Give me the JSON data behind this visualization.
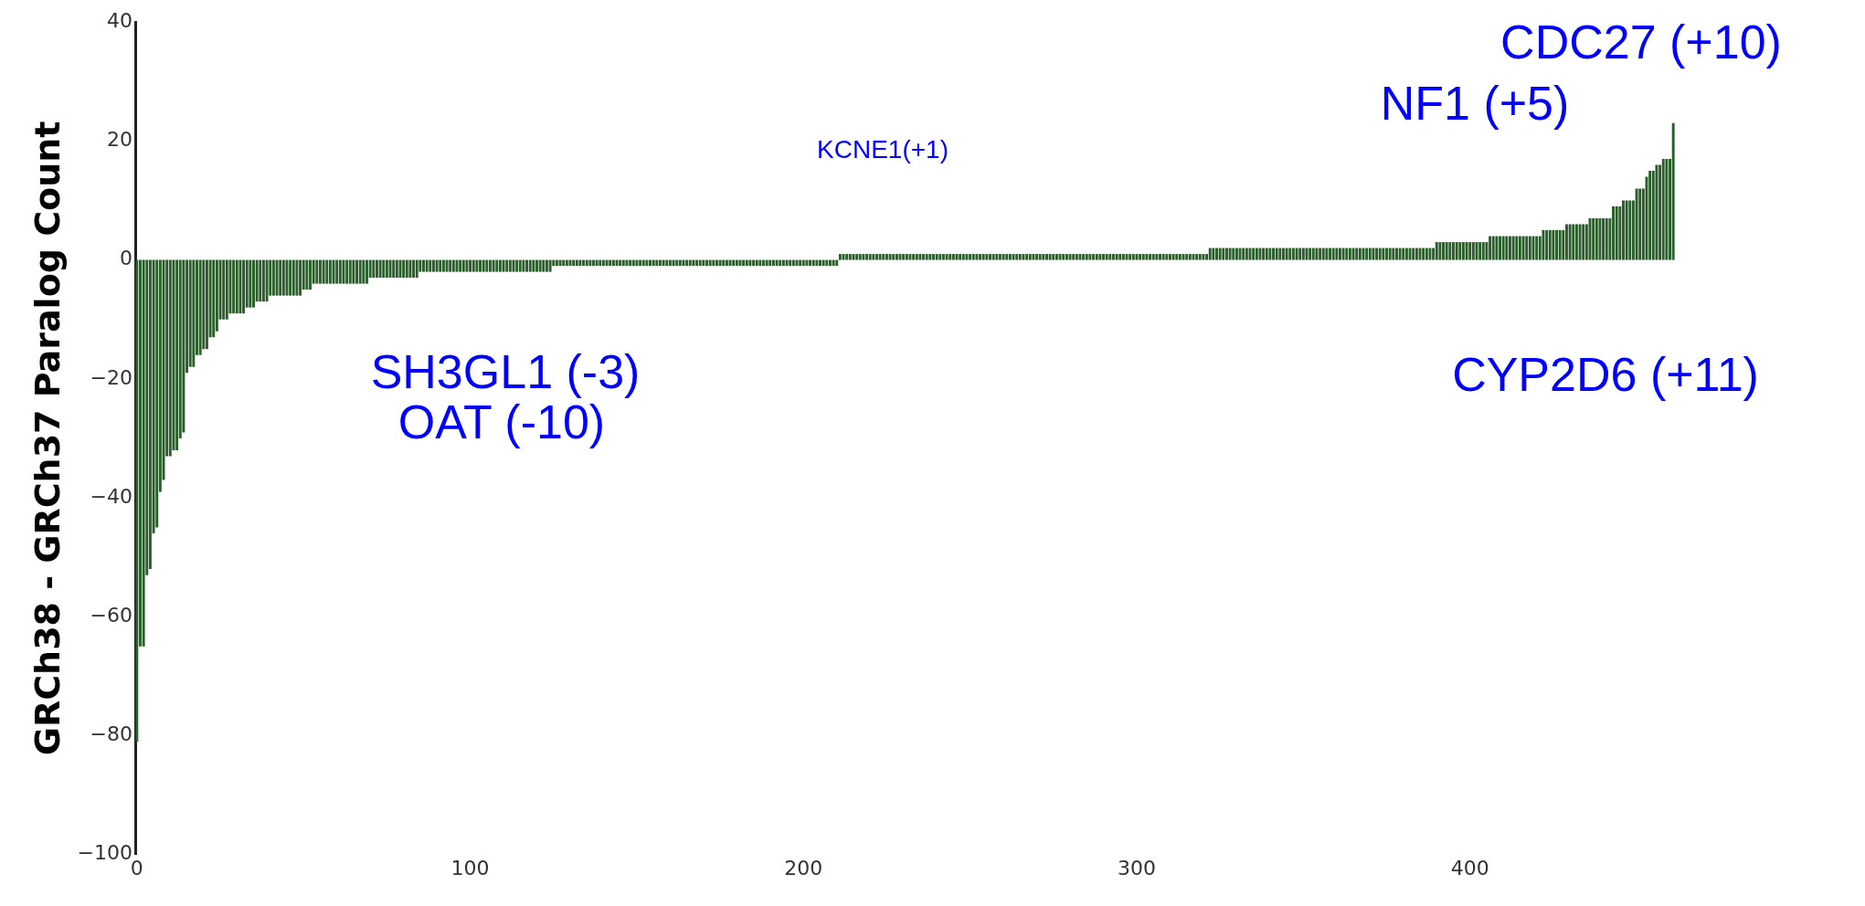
{
  "chart_data": {
    "type": "bar",
    "ylabel": "GRCh38 - GRCh37 Paralog Count",
    "color": "#2a5e2a",
    "x": [
      0,
      1,
      2,
      3,
      4,
      5,
      6,
      7,
      8,
      9,
      10,
      11,
      12,
      13,
      14,
      15,
      16,
      17,
      18,
      19,
      20,
      21,
      22,
      23,
      24,
      25,
      26,
      27,
      28,
      29,
      30,
      31,
      32,
      33,
      34,
      35,
      36,
      37,
      38,
      39,
      40,
      41,
      42,
      43,
      44,
      45,
      46,
      47,
      48,
      49,
      50,
      51,
      52,
      53,
      54,
      55,
      56,
      57,
      58,
      59,
      60,
      61,
      62,
      63,
      64,
      65,
      66,
      67,
      68,
      69,
      70,
      71,
      72,
      73,
      74,
      75,
      76,
      77,
      78,
      79,
      80,
      81,
      82,
      83,
      84,
      85,
      86,
      87,
      88,
      89,
      90,
      91,
      92,
      93,
      94,
      95,
      96,
      97,
      98,
      99,
      100,
      101,
      102,
      103,
      104,
      105,
      106,
      107,
      108,
      109,
      110,
      111,
      112,
      113,
      114,
      115,
      116,
      117,
      118,
      119,
      120,
      121,
      122,
      123,
      124,
      125,
      126,
      127,
      128,
      129,
      130,
      131,
      132,
      133,
      134,
      135,
      136,
      137,
      138,
      139,
      140,
      141,
      142,
      143,
      144,
      145,
      146,
      147,
      148,
      149,
      150,
      151,
      152,
      153,
      154,
      155,
      156,
      157,
      158,
      159,
      160,
      161,
      162,
      163,
      164,
      165,
      166,
      167,
      168,
      169,
      170,
      171,
      172,
      173,
      174,
      175,
      176,
      177,
      178,
      179,
      180,
      181,
      182,
      183,
      184,
      185,
      186,
      187,
      188,
      189,
      190,
      191,
      192,
      193,
      194,
      195,
      196,
      197,
      198,
      199,
      200,
      201,
      202,
      203,
      204,
      205,
      206,
      207,
      208,
      209,
      210,
      211,
      212,
      213,
      214,
      215,
      216,
      217,
      218,
      219,
      220,
      221,
      222,
      223,
      224,
      225,
      226,
      227,
      228,
      229,
      230,
      231,
      232,
      233,
      234,
      235,
      236,
      237,
      238,
      239,
      240,
      241,
      242,
      243,
      244,
      245,
      246,
      247,
      248,
      249,
      250,
      251,
      252,
      253,
      254,
      255,
      256,
      257,
      258,
      259,
      260,
      261,
      262,
      263,
      264,
      265,
      266,
      267,
      268,
      269,
      270,
      271,
      272,
      273,
      274,
      275,
      276,
      277,
      278,
      279,
      280,
      281,
      282,
      283,
      284,
      285,
      286,
      287,
      288,
      289,
      290,
      291,
      292,
      293,
      294,
      295,
      296,
      297,
      298,
      299,
      300,
      301,
      302,
      303,
      304,
      305,
      306,
      307,
      308,
      309,
      310,
      311,
      312,
      313,
      314,
      315,
      316,
      317,
      318,
      319,
      320,
      321,
      322,
      323,
      324,
      325,
      326,
      327,
      328,
      329,
      330,
      331,
      332,
      333,
      334,
      335,
      336,
      337,
      338,
      339,
      340,
      341,
      342,
      343,
      344,
      345,
      346,
      347,
      348,
      349,
      350,
      351,
      352,
      353,
      354,
      355,
      356,
      357,
      358,
      359,
      360,
      361,
      362,
      363,
      364,
      365,
      366,
      367,
      368,
      369,
      370,
      371,
      372,
      373,
      374,
      375,
      376,
      377,
      378,
      379,
      380,
      381,
      382,
      383,
      384,
      385,
      386,
      387,
      388,
      389,
      390,
      391,
      392,
      393,
      394,
      395,
      396,
      397,
      398,
      399,
      400,
      401,
      402,
      403,
      404,
      405,
      406,
      407,
      408,
      409,
      410,
      411,
      412,
      413,
      414,
      415,
      416,
      417,
      418,
      419,
      420,
      421,
      422,
      423,
      424,
      425,
      426,
      427,
      428,
      429,
      430,
      431,
      432,
      433,
      434,
      435,
      436,
      437,
      438,
      439,
      440,
      441,
      442,
      443,
      444,
      445,
      446,
      447,
      448,
      449,
      450,
      451,
      452,
      453,
      454,
      455,
      456,
      457,
      458,
      459,
      460,
      461
    ],
    "values": [
      -81,
      -65,
      -65,
      -53,
      -52,
      -46,
      -45,
      -39,
      -37,
      -33,
      -33,
      -32,
      -32,
      -30,
      -29,
      -19,
      -18,
      -18,
      -16,
      -16,
      -15,
      -15,
      -13,
      -13,
      -12,
      -10,
      -10,
      -10,
      -9,
      -9,
      -9,
      -9,
      -9,
      -8,
      -8,
      -8,
      -7,
      -7,
      -7,
      -7,
      -6,
      -6,
      -6,
      -6,
      -6,
      -6,
      -6,
      -6,
      -6,
      -6,
      -5,
      -5,
      -5,
      -4,
      -4,
      -4,
      -4,
      -4,
      -4,
      -4,
      -4,
      -4,
      -4,
      -4,
      -4,
      -4,
      -4,
      -4,
      -4,
      -4,
      -3,
      -3,
      -3,
      -3,
      -3,
      -3,
      -3,
      -3,
      -3,
      -3,
      -3,
      -3,
      -3,
      -3,
      -3,
      -2,
      -2,
      -2,
      -2,
      -2,
      -2,
      -2,
      -2,
      -2,
      -2,
      -2,
      -2,
      -2,
      -2,
      -2,
      -2,
      -2,
      -2,
      -2,
      -2,
      -2,
      -2,
      -2,
      -2,
      -2,
      -2,
      -2,
      -2,
      -2,
      -2,
      -2,
      -2,
      -2,
      -2,
      -2,
      -2,
      -2,
      -2,
      -2,
      -2,
      -1,
      -1,
      -1,
      -1,
      -1,
      -1,
      -1,
      -1,
      -1,
      -1,
      -1,
      -1,
      -1,
      -1,
      -1,
      -1,
      -1,
      -1,
      -1,
      -1,
      -1,
      -1,
      -1,
      -1,
      -1,
      -1,
      -1,
      -1,
      -1,
      -1,
      -1,
      -1,
      -1,
      -1,
      -1,
      -1,
      -1,
      -1,
      -1,
      -1,
      -1,
      -1,
      -1,
      -1,
      -1,
      -1,
      -1,
      -1,
      -1,
      -1,
      -1,
      -1,
      -1,
      -1,
      -1,
      -1,
      -1,
      -1,
      -1,
      -1,
      -1,
      -1,
      -1,
      -1,
      -1,
      -1,
      -1,
      -1,
      -1,
      -1,
      -1,
      -1,
      -1,
      -1,
      -1,
      -1,
      -1,
      -1,
      -1,
      -1,
      -1,
      -1,
      -1,
      -1,
      -1,
      -1,
      1,
      1,
      1,
      1,
      1,
      1,
      1,
      1,
      1,
      1,
      1,
      1,
      1,
      1,
      1,
      1,
      1,
      1,
      1,
      1,
      1,
      1,
      1,
      1,
      1,
      1,
      1,
      1,
      1,
      1,
      1,
      1,
      1,
      1,
      1,
      1,
      1,
      1,
      1,
      1,
      1,
      1,
      1,
      1,
      1,
      1,
      1,
      1,
      1,
      1,
      1,
      1,
      1,
      1,
      1,
      1,
      1,
      1,
      1,
      1,
      1,
      1,
      1,
      1,
      1,
      1,
      1,
      1,
      1,
      1,
      1,
      1,
      1,
      1,
      1,
      1,
      1,
      1,
      1,
      1,
      1,
      1,
      1,
      1,
      1,
      1,
      1,
      1,
      1,
      1,
      1,
      1,
      1,
      1,
      1,
      1,
      1,
      1,
      1,
      1,
      1,
      1,
      1,
      1,
      1,
      1,
      1,
      1,
      1,
      1,
      1,
      2,
      2,
      2,
      2,
      2,
      2,
      2,
      2,
      2,
      2,
      2,
      2,
      2,
      2,
      2,
      2,
      2,
      2,
      2,
      2,
      2,
      2,
      2,
      2,
      2,
      2,
      2,
      2,
      2,
      2,
      2,
      2,
      2,
      2,
      2,
      2,
      2,
      2,
      2,
      2,
      2,
      2,
      2,
      2,
      2,
      2,
      2,
      2,
      2,
      2,
      2,
      2,
      2,
      2,
      2,
      2,
      2,
      2,
      2,
      2,
      2,
      2,
      2,
      2,
      2,
      2,
      2,
      2,
      3,
      3,
      3,
      3,
      3,
      3,
      3,
      3,
      3,
      3,
      3,
      3,
      3,
      3,
      3,
      3,
      4,
      4,
      4,
      4,
      4,
      4,
      4,
      4,
      4,
      4,
      4,
      4,
      4,
      4,
      4,
      4,
      5,
      5,
      5,
      5,
      5,
      5,
      5,
      6,
      6,
      6,
      6,
      6,
      6,
      6,
      7,
      7,
      7,
      7,
      7,
      7,
      7,
      9,
      9,
      9,
      10,
      10,
      10,
      10,
      12,
      12,
      12,
      14,
      15,
      15,
      16,
      16,
      17,
      17,
      17,
      23
    ],
    "xlim": [
      -0.5,
      461.5
    ],
    "xticks": [
      0,
      100,
      200,
      300,
      400
    ],
    "ylim": [
      -100,
      40
    ],
    "yticks": [
      {
        "value": -100,
        "label": "−100"
      },
      {
        "value": -80,
        "label": "−80"
      },
      {
        "value": -60,
        "label": "−60"
      },
      {
        "value": -40,
        "label": "−40"
      },
      {
        "value": -20,
        "label": "−20"
      },
      0,
      20,
      40
    ],
    "annotations": [
      "CDC27 (+10)",
      "NF1 (+5)",
      "KCNE1(+1)",
      "SH3GL1 (-3)",
      "CYP2D6 (+11)",
      "OAT (-10)"
    ],
    "grid": false,
    "legend": false
  }
}
